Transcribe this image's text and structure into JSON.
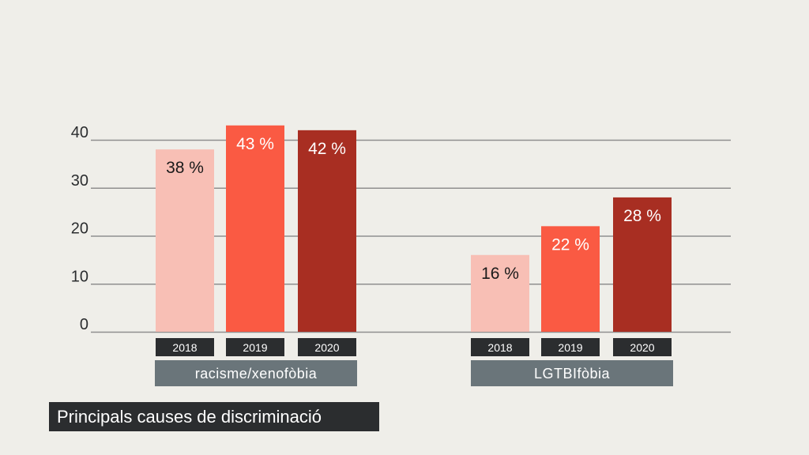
{
  "chart_data": {
    "type": "bar",
    "title": "Principals causes de discriminació",
    "groups": [
      "racisme/xenofòbia",
      "LGTBIfòbia"
    ],
    "years": [
      "2018",
      "2019",
      "2020"
    ],
    "series": [
      {
        "name": "2018",
        "values": [
          38,
          16
        ],
        "labels": [
          "38 %",
          "16 %"
        ],
        "color": "#f8bfb5"
      },
      {
        "name": "2019",
        "values": [
          43,
          22
        ],
        "labels": [
          "43 %",
          "22 %"
        ],
        "color": "#fa5a43"
      },
      {
        "name": "2020",
        "values": [
          42,
          28
        ],
        "labels": [
          "42 %",
          "28 %"
        ],
        "color": "#a82e22"
      }
    ],
    "yticks": [
      0,
      10,
      20,
      30,
      40
    ],
    "ylim": [
      0,
      40
    ],
    "grid": true,
    "colors": {
      "background": "#efeee9",
      "grid": "#8f8f8f",
      "year_box": "#2b2d2f",
      "group_box": "#6a757a",
      "caption_box": "#2b2d2f"
    }
  }
}
